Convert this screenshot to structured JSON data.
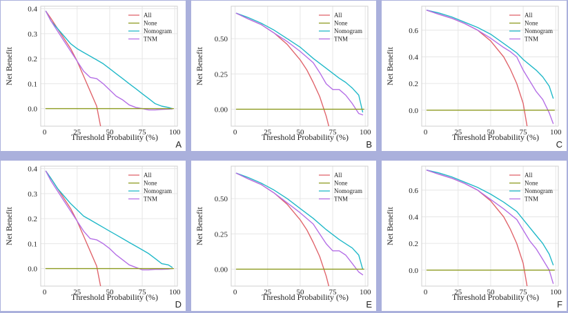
{
  "colors": {
    "All": "#e0646b",
    "None": "#8c9a1e",
    "Nomogram": "#1fb8c8",
    "TNM": "#b46ee6"
  },
  "chart_data": [
    {
      "type": "line",
      "label": "A",
      "xlabel": "Threshold Probability (%)",
      "ylabel": "Net Benefit",
      "xlim": [
        -3,
        102
      ],
      "ylim": [
        -0.07,
        0.41
      ],
      "xticks": [
        0,
        25,
        50,
        75,
        100
      ],
      "xtick_labels": [
        "0",
        "25",
        "50",
        "75",
        "100"
      ],
      "yticks": [
        0,
        0.1,
        0.2,
        0.3,
        0.4
      ],
      "ytick_labels": [
        "0.0",
        "0.1",
        "0.2",
        "0.3",
        "0.4"
      ],
      "series": [
        {
          "name": "All",
          "x": [
            1,
            5,
            10,
            15,
            20,
            25,
            30,
            35,
            40,
            43
          ],
          "y": [
            0.39,
            0.36,
            0.32,
            0.28,
            0.24,
            0.19,
            0.13,
            0.07,
            0.01,
            -0.07
          ]
        },
        {
          "name": "None",
          "x": [
            1,
            99
          ],
          "y": [
            0,
            0
          ]
        },
        {
          "name": "Nomogram",
          "x": [
            1,
            5,
            10,
            15,
            20,
            25,
            30,
            35,
            40,
            45,
            50,
            55,
            60,
            65,
            70,
            75,
            80,
            85,
            90,
            95,
            98
          ],
          "y": [
            0.39,
            0.35,
            0.32,
            0.29,
            0.26,
            0.24,
            0.225,
            0.21,
            0.195,
            0.18,
            0.16,
            0.14,
            0.12,
            0.1,
            0.08,
            0.06,
            0.04,
            0.02,
            0.01,
            0.005,
            0
          ]
        },
        {
          "name": "TNM",
          "x": [
            1,
            5,
            10,
            15,
            20,
            25,
            30,
            35,
            40,
            45,
            50,
            55,
            60,
            65,
            70,
            75,
            80,
            85,
            90,
            95,
            98
          ],
          "y": [
            0.39,
            0.35,
            0.31,
            0.27,
            0.23,
            0.19,
            0.15,
            0.125,
            0.12,
            0.1,
            0.075,
            0.05,
            0.035,
            0.015,
            0.005,
            0,
            -0.005,
            -0.005,
            -0.003,
            -0.002,
            -0.001
          ]
        }
      ]
    },
    {
      "type": "line",
      "label": "B",
      "xlabel": "Threshold Probability (%)",
      "ylabel": "Net Benefit",
      "xlim": [
        -3,
        102
      ],
      "ylim": [
        -0.12,
        0.73
      ],
      "xticks": [
        0,
        25,
        50,
        75,
        100
      ],
      "xtick_labels": [
        "0",
        "25",
        "50",
        "75",
        "100"
      ],
      "yticks": [
        0,
        0.25,
        0.5
      ],
      "ytick_labels": [
        "0.00",
        "0.25",
        "0.50"
      ],
      "series": [
        {
          "name": "All",
          "x": [
            1,
            10,
            20,
            30,
            40,
            50,
            55,
            60,
            65,
            70,
            72
          ],
          "y": [
            0.68,
            0.64,
            0.6,
            0.54,
            0.46,
            0.35,
            0.28,
            0.19,
            0.09,
            -0.05,
            -0.12
          ]
        },
        {
          "name": "None",
          "x": [
            1,
            99
          ],
          "y": [
            0,
            0
          ]
        },
        {
          "name": "Nomogram",
          "x": [
            1,
            10,
            20,
            30,
            40,
            50,
            60,
            70,
            80,
            85,
            90,
            95,
            98
          ],
          "y": [
            0.68,
            0.65,
            0.61,
            0.56,
            0.5,
            0.44,
            0.36,
            0.29,
            0.22,
            0.19,
            0.15,
            0.1,
            -0.02
          ]
        },
        {
          "name": "TNM",
          "x": [
            1,
            10,
            20,
            30,
            40,
            50,
            60,
            65,
            70,
            75,
            80,
            85,
            90,
            95,
            98
          ],
          "y": [
            0.68,
            0.64,
            0.6,
            0.54,
            0.48,
            0.41,
            0.33,
            0.26,
            0.18,
            0.14,
            0.14,
            0.1,
            0.04,
            -0.03,
            -0.04
          ]
        }
      ]
    },
    {
      "type": "line",
      "label": "C",
      "xlabel": "Threshold Probability (%)",
      "ylabel": "Net Benefit",
      "xlim": [
        -3,
        102
      ],
      "ylim": [
        -0.12,
        0.78
      ],
      "xticks": [
        0,
        25,
        50,
        75,
        100
      ],
      "xtick_labels": [
        "0",
        "25",
        "50",
        "75",
        "100"
      ],
      "yticks": [
        0,
        0.2,
        0.4,
        0.6
      ],
      "ytick_labels": [
        "0.0",
        "0.2",
        "0.4",
        "0.6"
      ],
      "series": [
        {
          "name": "All",
          "x": [
            1,
            10,
            20,
            30,
            40,
            50,
            60,
            65,
            70,
            75,
            78
          ],
          "y": [
            0.75,
            0.72,
            0.69,
            0.65,
            0.6,
            0.52,
            0.4,
            0.31,
            0.2,
            0.05,
            -0.12
          ]
        },
        {
          "name": "None",
          "x": [
            1,
            99
          ],
          "y": [
            0,
            0
          ]
        },
        {
          "name": "Nomogram",
          "x": [
            1,
            10,
            20,
            30,
            40,
            50,
            60,
            70,
            75,
            80,
            85,
            90,
            95,
            98
          ],
          "y": [
            0.75,
            0.73,
            0.7,
            0.66,
            0.62,
            0.57,
            0.5,
            0.43,
            0.38,
            0.34,
            0.3,
            0.25,
            0.18,
            0.09
          ]
        },
        {
          "name": "TNM",
          "x": [
            1,
            10,
            20,
            30,
            40,
            50,
            60,
            65,
            70,
            75,
            80,
            85,
            90,
            95,
            98
          ],
          "y": [
            0.75,
            0.72,
            0.69,
            0.65,
            0.6,
            0.54,
            0.47,
            0.44,
            0.4,
            0.3,
            0.22,
            0.14,
            0.08,
            -0.02,
            -0.1
          ]
        }
      ]
    },
    {
      "type": "line",
      "label": "D",
      "xlabel": "Threshold Probability (%)",
      "ylabel": "Net Benefit",
      "xlim": [
        -3,
        102
      ],
      "ylim": [
        -0.07,
        0.41
      ],
      "xticks": [
        0,
        25,
        50,
        75,
        100
      ],
      "xtick_labels": [
        "0",
        "25",
        "50",
        "75",
        "100"
      ],
      "yticks": [
        0,
        0.1,
        0.2,
        0.3,
        0.4
      ],
      "ytick_labels": [
        "0.0",
        "0.1",
        "0.2",
        "0.3",
        "0.4"
      ],
      "series": [
        {
          "name": "All",
          "x": [
            1,
            5,
            10,
            15,
            20,
            25,
            30,
            35,
            40,
            43
          ],
          "y": [
            0.39,
            0.36,
            0.32,
            0.28,
            0.24,
            0.19,
            0.13,
            0.07,
            0.01,
            -0.07
          ]
        },
        {
          "name": "None",
          "x": [
            1,
            99
          ],
          "y": [
            0,
            0
          ]
        },
        {
          "name": "Nomogram",
          "x": [
            1,
            5,
            10,
            15,
            20,
            25,
            30,
            35,
            40,
            45,
            50,
            55,
            60,
            65,
            70,
            75,
            80,
            85,
            90,
            95,
            98
          ],
          "y": [
            0.39,
            0.36,
            0.32,
            0.29,
            0.26,
            0.235,
            0.21,
            0.195,
            0.18,
            0.165,
            0.15,
            0.135,
            0.12,
            0.105,
            0.09,
            0.075,
            0.06,
            0.04,
            0.02,
            0.015,
            0.005
          ]
        },
        {
          "name": "TNM",
          "x": [
            1,
            5,
            10,
            15,
            20,
            25,
            30,
            35,
            40,
            45,
            50,
            55,
            60,
            65,
            70,
            75,
            80,
            85,
            90,
            95,
            98
          ],
          "y": [
            0.39,
            0.35,
            0.31,
            0.27,
            0.23,
            0.19,
            0.15,
            0.12,
            0.115,
            0.1,
            0.08,
            0.055,
            0.035,
            0.015,
            0.005,
            -0.005,
            -0.005,
            -0.003,
            -0.003,
            -0.002,
            0
          ]
        }
      ]
    },
    {
      "type": "line",
      "label": "E",
      "xlabel": "Threshold Probability (%)",
      "ylabel": "Net Benefit",
      "xlim": [
        -3,
        102
      ],
      "ylim": [
        -0.12,
        0.73
      ],
      "xticks": [
        0,
        25,
        50,
        75,
        100
      ],
      "xtick_labels": [
        "0",
        "25",
        "50",
        "75",
        "100"
      ],
      "yticks": [
        0,
        0.25,
        0.5
      ],
      "ytick_labels": [
        "0.00",
        "0.25",
        "0.50"
      ],
      "series": [
        {
          "name": "All",
          "x": [
            1,
            10,
            20,
            30,
            40,
            50,
            55,
            60,
            65,
            70,
            72
          ],
          "y": [
            0.68,
            0.64,
            0.6,
            0.54,
            0.46,
            0.35,
            0.28,
            0.19,
            0.09,
            -0.05,
            -0.12
          ]
        },
        {
          "name": "None",
          "x": [
            1,
            99
          ],
          "y": [
            0,
            0
          ]
        },
        {
          "name": "Nomogram",
          "x": [
            1,
            10,
            20,
            30,
            40,
            50,
            60,
            70,
            80,
            85,
            90,
            95,
            98
          ],
          "y": [
            0.68,
            0.65,
            0.61,
            0.56,
            0.5,
            0.43,
            0.36,
            0.28,
            0.21,
            0.18,
            0.15,
            0.1,
            0.0
          ]
        },
        {
          "name": "TNM",
          "x": [
            1,
            10,
            20,
            30,
            40,
            50,
            60,
            65,
            70,
            75,
            80,
            85,
            90,
            95,
            98
          ],
          "y": [
            0.68,
            0.64,
            0.6,
            0.54,
            0.47,
            0.4,
            0.32,
            0.25,
            0.18,
            0.13,
            0.13,
            0.1,
            0.04,
            -0.02,
            -0.04
          ]
        }
      ]
    },
    {
      "type": "line",
      "label": "F",
      "xlabel": "Threshold Probability (%)",
      "ylabel": "Net Benefit",
      "xlim": [
        -3,
        102
      ],
      "ylim": [
        -0.12,
        0.78
      ],
      "xticks": [
        0,
        25,
        50,
        75,
        100
      ],
      "xtick_labels": [
        "0",
        "25",
        "50",
        "75",
        "100"
      ],
      "yticks": [
        0,
        0.2,
        0.4,
        0.6
      ],
      "ytick_labels": [
        "0.0",
        "0.2",
        "0.4",
        "0.6"
      ],
      "series": [
        {
          "name": "All",
          "x": [
            1,
            10,
            20,
            30,
            40,
            50,
            60,
            65,
            70,
            75,
            78
          ],
          "y": [
            0.75,
            0.72,
            0.69,
            0.65,
            0.6,
            0.52,
            0.4,
            0.31,
            0.2,
            0.05,
            -0.12
          ]
        },
        {
          "name": "None",
          "x": [
            1,
            99
          ],
          "y": [
            0,
            0
          ]
        },
        {
          "name": "Nomogram",
          "x": [
            1,
            10,
            20,
            30,
            40,
            50,
            60,
            70,
            75,
            80,
            85,
            90,
            95,
            98
          ],
          "y": [
            0.75,
            0.73,
            0.7,
            0.66,
            0.62,
            0.57,
            0.51,
            0.44,
            0.38,
            0.32,
            0.26,
            0.2,
            0.12,
            0.04
          ]
        },
        {
          "name": "TNM",
          "x": [
            1,
            10,
            20,
            30,
            40,
            50,
            60,
            65,
            70,
            75,
            80,
            85,
            90,
            95,
            98
          ],
          "y": [
            0.75,
            0.72,
            0.69,
            0.65,
            0.6,
            0.53,
            0.46,
            0.42,
            0.38,
            0.3,
            0.22,
            0.16,
            0.08,
            0.0,
            -0.1
          ]
        }
      ]
    }
  ]
}
